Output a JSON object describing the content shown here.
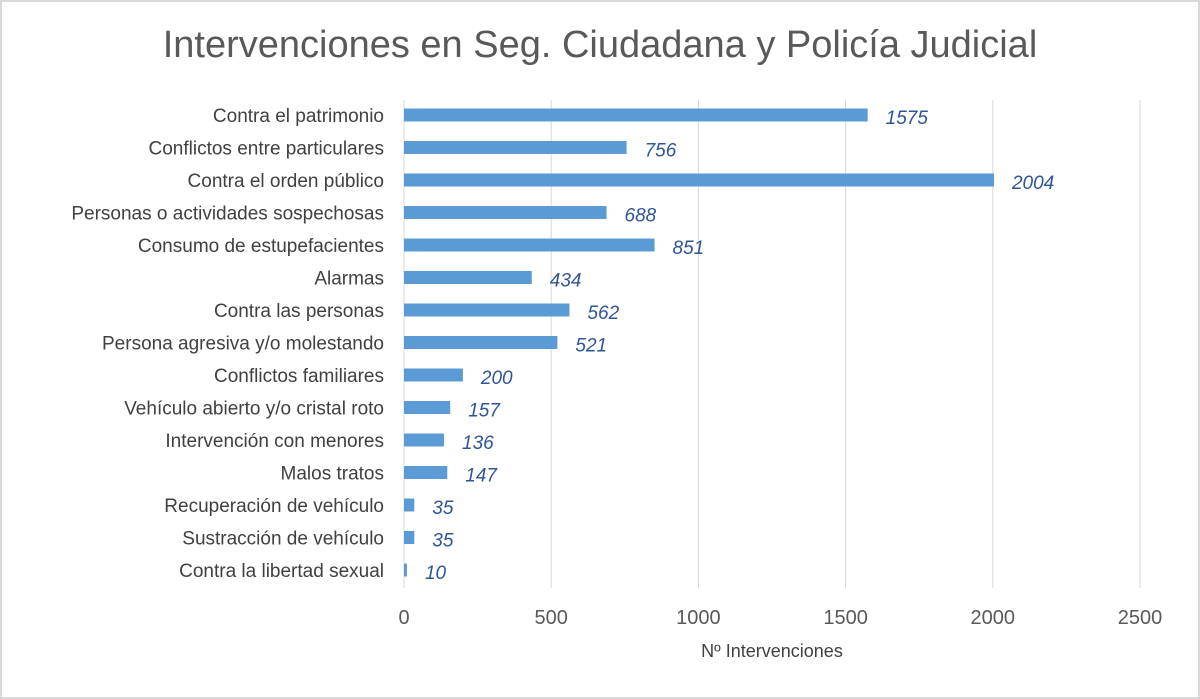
{
  "chart_data": {
    "type": "bar",
    "orientation": "horizontal",
    "title": "Intervenciones en Seg. Ciudadana y Policía Judicial",
    "xlabel": "Nº Intervenciones",
    "ylabel": "",
    "xlim": [
      0,
      2500
    ],
    "xticks": [
      0,
      500,
      1000,
      1500,
      2000,
      2500
    ],
    "grid": true,
    "legend": "none",
    "bar_color": "#5b9bd5",
    "label_color": "#2f5597",
    "categories": [
      "Contra el patrimonio",
      "Conflictos entre particulares",
      "Contra el orden público",
      "Personas o actividades sospechosas",
      "Consumo de estupefacientes",
      "Alarmas",
      "Contra las personas",
      "Persona agresiva y/o molestando",
      "Conflictos familiares",
      "Vehículo abierto y/o cristal roto",
      "Intervención con menores",
      "Malos tratos",
      "Recuperación de vehículo",
      "Sustracción de vehículo",
      "Contra la libertad sexual"
    ],
    "values": [
      1575,
      756,
      2004,
      688,
      851,
      434,
      562,
      521,
      200,
      157,
      136,
      147,
      35,
      35,
      10
    ]
  }
}
